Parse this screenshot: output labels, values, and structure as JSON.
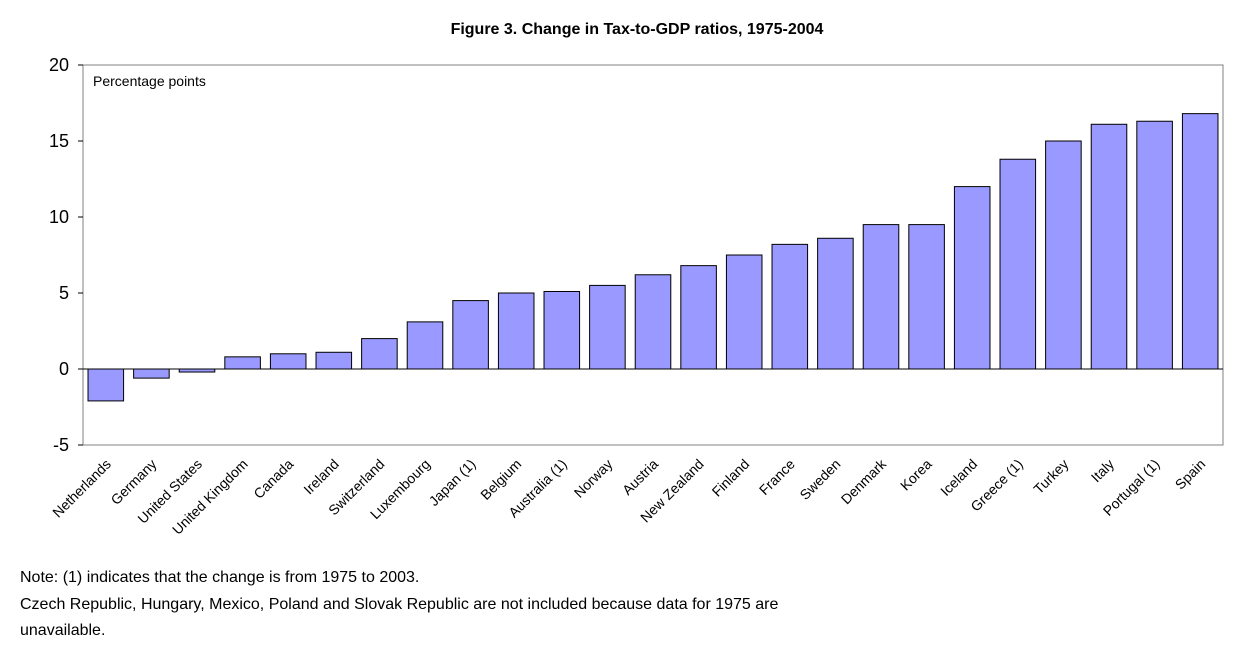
{
  "chart_data": {
    "type": "bar",
    "title": "Figure 3. Change in Tax-to-GDP ratios, 1975-2004",
    "ylabel": "Percentage points",
    "xlabel": "",
    "ylim": [
      -5,
      20
    ],
    "yticks": [
      -5,
      0,
      5,
      10,
      15,
      20
    ],
    "grid": false,
    "bar_color": "#9999ff",
    "categories": [
      "Netherlands",
      "Germany",
      "United States",
      "United Kingdom",
      "Canada",
      "Ireland",
      "Switzerland",
      "Luxembourg",
      "Japan (1)",
      "Belgium",
      "Australia (1)",
      "Norway",
      "Austria",
      "New Zealand",
      "Finland",
      "France",
      "Sweden",
      "Denmark",
      "Korea",
      "Iceland",
      "Greece (1)",
      "Turkey",
      "Italy",
      "Portugal (1)",
      "Spain"
    ],
    "values": [
      -2.1,
      -0.6,
      -0.2,
      0.8,
      1.0,
      1.1,
      2.0,
      3.1,
      4.5,
      5.0,
      5.1,
      5.5,
      6.2,
      6.8,
      7.5,
      8.2,
      8.6,
      9.5,
      9.5,
      12.0,
      13.8,
      15.0,
      16.1,
      16.3,
      16.8
    ]
  },
  "notes": {
    "line1": "Note: (1) indicates that the change is from 1975 to 2003.",
    "line2": " Czech Republic, Hungary, Mexico, Poland and Slovak Republic are not included because data for 1975 are",
    "line3": "unavailable."
  }
}
